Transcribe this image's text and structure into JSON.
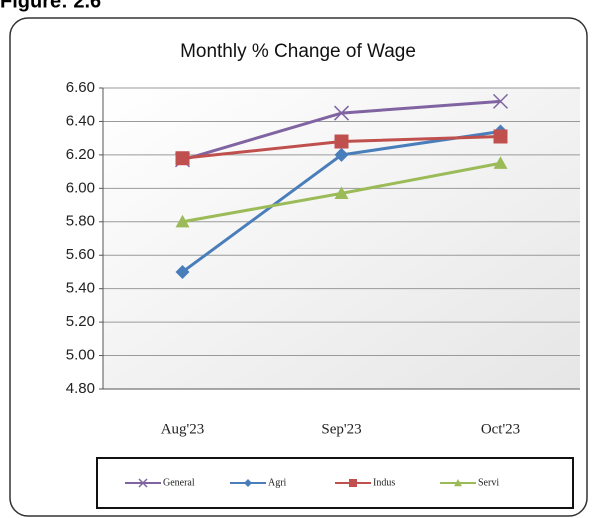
{
  "chart_data": {
    "type": "line",
    "figure_label": "Figure: 2.6",
    "title": "Monthly % Change of Wage",
    "categories": [
      "Aug'23",
      "Sep'23",
      "Oct'23"
    ],
    "series": [
      {
        "name": "General",
        "color": "#8064a2",
        "marker": "x",
        "values": [
          6.17,
          6.45,
          6.52
        ]
      },
      {
        "name": "Agri",
        "color": "#4a7ebb",
        "marker": "diamond",
        "values": [
          5.5,
          6.2,
          6.34
        ]
      },
      {
        "name": "Indus",
        "color": "#c0504d",
        "marker": "square",
        "values": [
          6.18,
          6.28,
          6.31
        ]
      },
      {
        "name": "Servi",
        "color": "#9bbb59",
        "marker": "triangle",
        "values": [
          5.8,
          5.97,
          6.15
        ]
      }
    ],
    "ylim": [
      4.8,
      6.6
    ],
    "yticks": [
      {
        "value": 4.8,
        "label": "4.80"
      },
      {
        "value": 5.0,
        "label": "5.00"
      },
      {
        "value": 5.2,
        "label": "5.20"
      },
      {
        "value": 5.4,
        "label": "5.40"
      },
      {
        "value": 5.6,
        "label": "5.60"
      },
      {
        "value": 5.8,
        "label": "5.80"
      },
      {
        "value": 6.0,
        "label": "6.00"
      },
      {
        "value": 6.2,
        "label": "6.20"
      },
      {
        "value": 6.4,
        "label": "6.40"
      },
      {
        "value": 6.6,
        "label": "6.60"
      }
    ],
    "grid": true,
    "legend": "bottom"
  }
}
